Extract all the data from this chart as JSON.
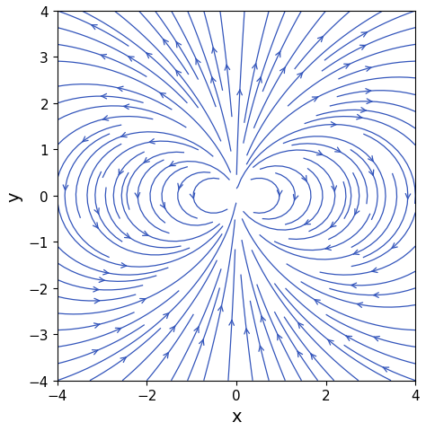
{
  "xlim": [
    -4,
    4
  ],
  "ylim": [
    -4,
    4
  ],
  "xlabel": "x",
  "ylabel": "y",
  "line_color": "#3355bb",
  "background_color": "#ffffff",
  "density": 1.5,
  "figsize": [
    4.74,
    4.81
  ],
  "dpi": 100,
  "xlabel_fontsize": 14,
  "ylabel_fontsize": 14,
  "tick_fontsize": 11,
  "pole_y": 0.0,
  "pole_separation": 0.3,
  "linewidth": 0.9,
  "arrowsize": 1.0
}
